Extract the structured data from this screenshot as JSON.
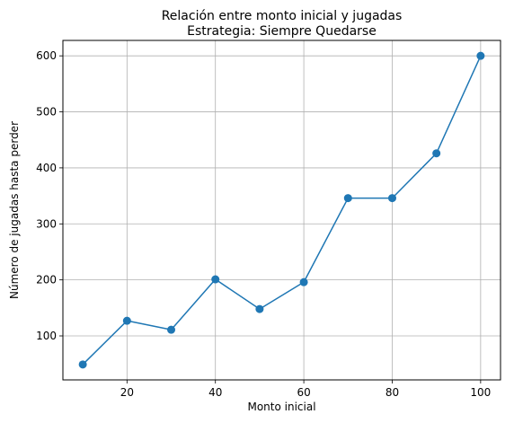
{
  "chart_data": {
    "type": "line",
    "title": "Relación entre monto inicial y jugadas",
    "subtitle": "Estrategia: Siempre Quedarse",
    "xlabel": "Monto inicial",
    "ylabel": "Número de jugadas hasta perder",
    "x": [
      10,
      20,
      30,
      40,
      50,
      60,
      70,
      80,
      90,
      100
    ],
    "series": [
      {
        "values": [
          49,
          127,
          111,
          201,
          148,
          196,
          346,
          346,
          426,
          600
        ]
      }
    ],
    "xlim": [
      5.5,
      104.5
    ],
    "ylim": [
      21.45,
      627.55
    ],
    "xticks": [
      20,
      40,
      60,
      80,
      100
    ],
    "yticks": [
      100,
      200,
      300,
      400,
      500,
      600
    ],
    "grid": true,
    "line_color": "#1f77b4",
    "marker": "circle"
  }
}
